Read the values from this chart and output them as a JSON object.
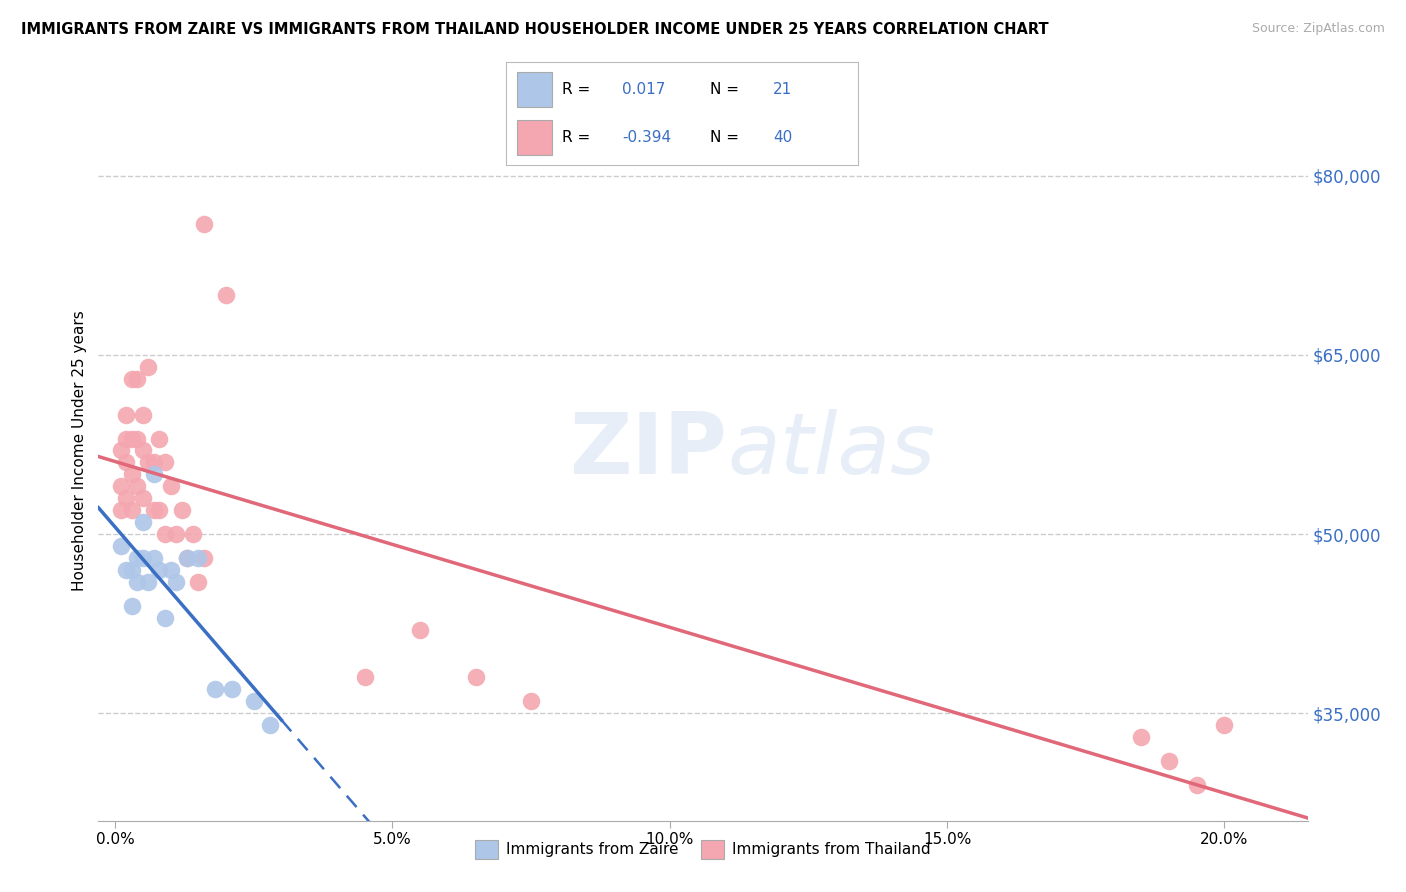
{
  "title": "IMMIGRANTS FROM ZAIRE VS IMMIGRANTS FROM THAILAND HOUSEHOLDER INCOME UNDER 25 YEARS CORRELATION CHART",
  "source": "Source: ZipAtlas.com",
  "ylabel": "Householder Income Under 25 years",
  "xlabel_ticks": [
    "0.0%",
    "5.0%",
    "10.0%",
    "15.0%",
    "20.0%"
  ],
  "xlabel_vals": [
    0.0,
    0.05,
    0.1,
    0.15,
    0.2
  ],
  "ylabel_ticks": [
    "$35,000",
    "$50,000",
    "$65,000",
    "$80,000"
  ],
  "ylabel_vals": [
    35000,
    50000,
    65000,
    80000
  ],
  "xlim": [
    -0.003,
    0.215
  ],
  "ylim": [
    26000,
    88000
  ],
  "r_zaire": 0.017,
  "n_zaire": 21,
  "r_thailand": -0.394,
  "n_thailand": 40,
  "zaire_color": "#aec6e8",
  "thailand_color": "#f4a7b0",
  "zaire_line_color": "#3a6fc4",
  "thailand_line_color": "#e06878",
  "grid_color": "#cccccc",
  "zaire_x": [
    0.001,
    0.002,
    0.003,
    0.003,
    0.004,
    0.004,
    0.005,
    0.005,
    0.006,
    0.007,
    0.007,
    0.008,
    0.009,
    0.01,
    0.011,
    0.013,
    0.015,
    0.018,
    0.021,
    0.025,
    0.028
  ],
  "zaire_y": [
    49000,
    47000,
    47000,
    44000,
    48000,
    46000,
    51000,
    48000,
    46000,
    55000,
    48000,
    47000,
    43000,
    47000,
    46000,
    48000,
    48000,
    37000,
    37000,
    36000,
    34000
  ],
  "thailand_x": [
    0.001,
    0.001,
    0.001,
    0.002,
    0.002,
    0.002,
    0.002,
    0.003,
    0.003,
    0.003,
    0.003,
    0.004,
    0.004,
    0.004,
    0.005,
    0.005,
    0.005,
    0.006,
    0.006,
    0.007,
    0.007,
    0.008,
    0.008,
    0.009,
    0.009,
    0.01,
    0.011,
    0.012,
    0.013,
    0.014,
    0.015,
    0.016,
    0.045,
    0.055,
    0.065,
    0.075,
    0.185,
    0.19,
    0.195,
    0.2
  ],
  "thailand_y": [
    57000,
    54000,
    52000,
    60000,
    58000,
    56000,
    53000,
    63000,
    58000,
    55000,
    52000,
    63000,
    58000,
    54000,
    60000,
    57000,
    53000,
    64000,
    56000,
    56000,
    52000,
    58000,
    52000,
    56000,
    50000,
    54000,
    50000,
    52000,
    48000,
    50000,
    46000,
    48000,
    38000,
    42000,
    38000,
    36000,
    33000,
    31000,
    29000,
    34000
  ],
  "thailand_highpoints_x": [
    0.016,
    0.02
  ],
  "thailand_highpoints_y": [
    76000,
    70000
  ]
}
